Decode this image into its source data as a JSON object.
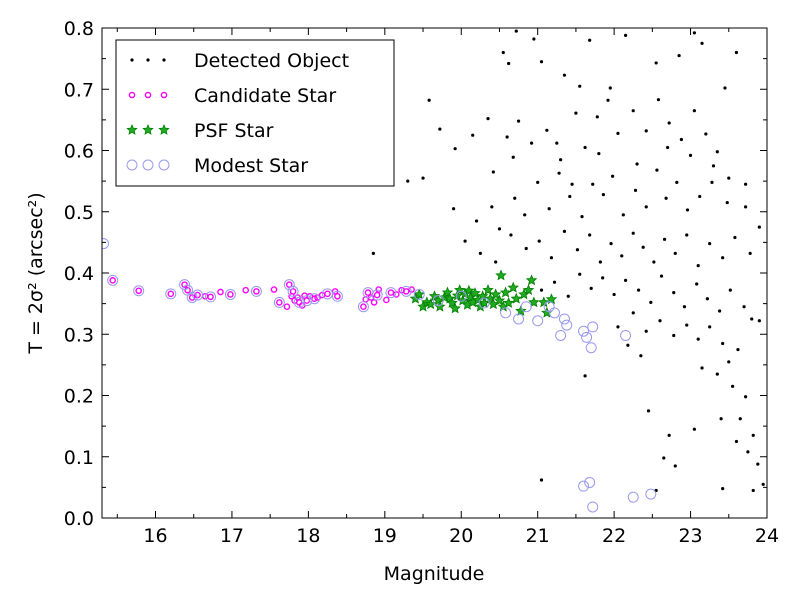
{
  "chart_data": {
    "type": "scatter",
    "xlabel": "Magnitude",
    "ylabel": "T = 2σ² (arcsec²)",
    "xlim": [
      15.3,
      24.0
    ],
    "ylim": [
      0.0,
      0.8
    ],
    "xticks": [
      "16",
      "17",
      "18",
      "19",
      "20",
      "21",
      "22",
      "23",
      "24"
    ],
    "yticks": [
      "0.0",
      "0.1",
      "0.2",
      "0.3",
      "0.4",
      "0.5",
      "0.6",
      "0.7",
      "0.8"
    ],
    "grid": false,
    "legend_position": "top-left",
    "series": [
      {
        "name": "Detected Object",
        "marker": "dot",
        "color": "#000000",
        "points_note": "visible faint dots",
        "points": [
          [
            18.85,
            0.432
          ],
          [
            20.55,
            0.76
          ],
          [
            20.62,
            0.742
          ],
          [
            20.72,
            0.795
          ],
          [
            20.95,
            0.782
          ],
          [
            21.05,
            0.745
          ],
          [
            21.35,
            0.723
          ],
          [
            21.55,
            0.705
          ],
          [
            21.68,
            0.78
          ],
          [
            21.95,
            0.702
          ],
          [
            22.15,
            0.788
          ],
          [
            22.55,
            0.743
          ],
          [
            22.85,
            0.755
          ],
          [
            23.05,
            0.792
          ],
          [
            23.15,
            0.775
          ],
          [
            23.45,
            0.702
          ],
          [
            23.6,
            0.76
          ],
          [
            19.58,
            0.682
          ],
          [
            19.72,
            0.635
          ],
          [
            19.92,
            0.603
          ],
          [
            20.15,
            0.625
          ],
          [
            20.35,
            0.652
          ],
          [
            20.42,
            0.565
          ],
          [
            20.6,
            0.622
          ],
          [
            20.68,
            0.589
          ],
          [
            20.75,
            0.648
          ],
          [
            20.92,
            0.612
          ],
          [
            21.12,
            0.633
          ],
          [
            21.25,
            0.612
          ],
          [
            21.5,
            0.661
          ],
          [
            21.62,
            0.605
          ],
          [
            21.78,
            0.655
          ],
          [
            21.92,
            0.682
          ],
          [
            22.05,
            0.628
          ],
          [
            22.25,
            0.665
          ],
          [
            22.42,
            0.632
          ],
          [
            22.58,
            0.683
          ],
          [
            22.72,
            0.645
          ],
          [
            22.88,
            0.618
          ],
          [
            23.05,
            0.665
          ],
          [
            23.2,
            0.627
          ],
          [
            23.35,
            0.598
          ],
          [
            23.5,
            0.555
          ],
          [
            23.72,
            0.545
          ],
          [
            19.3,
            0.55
          ],
          [
            19.5,
            0.555
          ],
          [
            19.9,
            0.505
          ],
          [
            20.2,
            0.485
          ],
          [
            20.4,
            0.508
          ],
          [
            20.5,
            0.472
          ],
          [
            20.7,
            0.522
          ],
          [
            20.83,
            0.495
          ],
          [
            21.0,
            0.548
          ],
          [
            21.15,
            0.505
          ],
          [
            21.28,
            0.563
          ],
          [
            21.42,
            0.525
          ],
          [
            21.58,
            0.492
          ],
          [
            21.72,
            0.545
          ],
          [
            21.86,
            0.528
          ],
          [
            21.98,
            0.558
          ],
          [
            22.12,
            0.495
          ],
          [
            22.28,
            0.535
          ],
          [
            22.42,
            0.508
          ],
          [
            22.56,
            0.568
          ],
          [
            22.68,
            0.522
          ],
          [
            22.82,
            0.548
          ],
          [
            22.96,
            0.503
          ],
          [
            23.12,
            0.525
          ],
          [
            23.28,
            0.548
          ],
          [
            23.48,
            0.515
          ],
          [
            23.72,
            0.508
          ],
          [
            20.05,
            0.452
          ],
          [
            20.25,
            0.432
          ],
          [
            20.45,
            0.418
          ],
          [
            20.65,
            0.462
          ],
          [
            20.85,
            0.44
          ],
          [
            21.02,
            0.452
          ],
          [
            21.18,
            0.425
          ],
          [
            21.35,
            0.468
          ],
          [
            21.52,
            0.438
          ],
          [
            21.68,
            0.462
          ],
          [
            21.82,
            0.418
          ],
          [
            21.96,
            0.448
          ],
          [
            22.1,
            0.428
          ],
          [
            22.25,
            0.465
          ],
          [
            22.38,
            0.442
          ],
          [
            22.52,
            0.418
          ],
          [
            22.66,
            0.455
          ],
          [
            22.8,
            0.432
          ],
          [
            22.95,
            0.462
          ],
          [
            23.1,
            0.412
          ],
          [
            23.25,
            0.448
          ],
          [
            23.42,
            0.425
          ],
          [
            23.58,
            0.458
          ],
          [
            23.78,
            0.432
          ],
          [
            21.05,
            0.372
          ],
          [
            21.22,
            0.385
          ],
          [
            21.4,
            0.362
          ],
          [
            21.55,
            0.398
          ],
          [
            21.7,
            0.375
          ],
          [
            21.85,
            0.392
          ],
          [
            22.0,
            0.365
          ],
          [
            22.15,
            0.388
          ],
          [
            22.32,
            0.372
          ],
          [
            22.48,
            0.352
          ],
          [
            22.62,
            0.395
          ],
          [
            22.78,
            0.368
          ],
          [
            22.92,
            0.345
          ],
          [
            23.08,
            0.382
          ],
          [
            23.22,
            0.358
          ],
          [
            23.38,
            0.338
          ],
          [
            23.52,
            0.372
          ],
          [
            23.7,
            0.345
          ],
          [
            22.05,
            0.312
          ],
          [
            22.25,
            0.335
          ],
          [
            22.42,
            0.305
          ],
          [
            22.6,
            0.322
          ],
          [
            22.78,
            0.298
          ],
          [
            22.95,
            0.315
          ],
          [
            23.1,
            0.292
          ],
          [
            23.25,
            0.312
          ],
          [
            23.42,
            0.285
          ],
          [
            23.62,
            0.275
          ],
          [
            23.8,
            0.325
          ],
          [
            23.9,
            0.322
          ],
          [
            21.62,
            0.232
          ],
          [
            22.45,
            0.175
          ],
          [
            23.15,
            0.245
          ],
          [
            23.35,
            0.235
          ],
          [
            23.55,
            0.215
          ],
          [
            23.72,
            0.198
          ],
          [
            22.72,
            0.135
          ],
          [
            23.05,
            0.145
          ],
          [
            23.4,
            0.162
          ],
          [
            23.6,
            0.125
          ],
          [
            23.82,
            0.135
          ],
          [
            23.75,
            0.108
          ],
          [
            22.55,
            0.045
          ],
          [
            22.8,
            0.085
          ],
          [
            23.42,
            0.048
          ],
          [
            23.82,
            0.045
          ],
          [
            23.95,
            0.055
          ],
          [
            21.05,
            0.062
          ],
          [
            22.65,
            0.098
          ],
          [
            23.88,
            0.088
          ],
          [
            22.35,
            0.265
          ],
          [
            22.18,
            0.282
          ],
          [
            23.5,
            0.255
          ],
          [
            23.65,
            0.162
          ],
          [
            21.3,
            0.585
          ],
          [
            21.45,
            0.545
          ],
          [
            21.8,
            0.595
          ],
          [
            22.3,
            0.578
          ],
          [
            22.7,
            0.605
          ],
          [
            23.0,
            0.592
          ],
          [
            23.3,
            0.575
          ],
          [
            23.9,
            0.475
          ]
        ]
      },
      {
        "name": "Candidate Star",
        "marker": "circle-small",
        "color": "#ff00ff",
        "points": [
          [
            15.44,
            0.388
          ],
          [
            15.78,
            0.371
          ],
          [
            16.2,
            0.366
          ],
          [
            16.38,
            0.381
          ],
          [
            16.42,
            0.372
          ],
          [
            16.48,
            0.36
          ],
          [
            16.55,
            0.364
          ],
          [
            16.65,
            0.362
          ],
          [
            16.72,
            0.361
          ],
          [
            16.85,
            0.369
          ],
          [
            16.98,
            0.365
          ],
          [
            17.18,
            0.372
          ],
          [
            17.32,
            0.37
          ],
          [
            17.55,
            0.373
          ],
          [
            17.62,
            0.352
          ],
          [
            17.72,
            0.345
          ],
          [
            17.75,
            0.381
          ],
          [
            17.78,
            0.362
          ],
          [
            17.8,
            0.37
          ],
          [
            17.82,
            0.355
          ],
          [
            17.86,
            0.36
          ],
          [
            17.88,
            0.352
          ],
          [
            17.92,
            0.347
          ],
          [
            17.95,
            0.363
          ],
          [
            17.98,
            0.355
          ],
          [
            18.02,
            0.362
          ],
          [
            18.08,
            0.358
          ],
          [
            18.12,
            0.36
          ],
          [
            18.18,
            0.364
          ],
          [
            18.25,
            0.366
          ],
          [
            18.35,
            0.37
          ],
          [
            18.38,
            0.362
          ],
          [
            18.72,
            0.345
          ],
          [
            18.75,
            0.357
          ],
          [
            18.78,
            0.368
          ],
          [
            18.82,
            0.36
          ],
          [
            18.86,
            0.352
          ],
          [
            18.9,
            0.364
          ],
          [
            18.92,
            0.373
          ],
          [
            19.02,
            0.356
          ],
          [
            19.08,
            0.368
          ],
          [
            19.15,
            0.365
          ],
          [
            19.22,
            0.372
          ],
          [
            19.28,
            0.37
          ],
          [
            19.35,
            0.373
          ]
        ]
      },
      {
        "name": "PSF Star",
        "marker": "star",
        "color": "#008000",
        "points": [
          [
            19.4,
            0.358
          ],
          [
            19.45,
            0.365
          ],
          [
            19.5,
            0.345
          ],
          [
            19.55,
            0.352
          ],
          [
            19.6,
            0.349
          ],
          [
            19.65,
            0.362
          ],
          [
            19.7,
            0.355
          ],
          [
            19.72,
            0.345
          ],
          [
            19.78,
            0.36
          ],
          [
            19.82,
            0.368
          ],
          [
            19.85,
            0.358
          ],
          [
            19.88,
            0.351
          ],
          [
            19.92,
            0.342
          ],
          [
            19.95,
            0.363
          ],
          [
            19.98,
            0.372
          ],
          [
            20.02,
            0.355
          ],
          [
            20.05,
            0.366
          ],
          [
            20.08,
            0.348
          ],
          [
            20.1,
            0.371
          ],
          [
            20.12,
            0.36
          ],
          [
            20.15,
            0.352
          ],
          [
            20.18,
            0.367
          ],
          [
            20.22,
            0.356
          ],
          [
            20.25,
            0.345
          ],
          [
            20.28,
            0.362
          ],
          [
            20.3,
            0.351
          ],
          [
            20.35,
            0.372
          ],
          [
            20.38,
            0.358
          ],
          [
            20.42,
            0.349
          ],
          [
            20.45,
            0.365
          ],
          [
            20.5,
            0.355
          ],
          [
            20.52,
            0.396
          ],
          [
            20.55,
            0.345
          ],
          [
            20.58,
            0.368
          ],
          [
            20.62,
            0.351
          ],
          [
            20.68,
            0.376
          ],
          [
            20.72,
            0.358
          ],
          [
            20.78,
            0.338
          ],
          [
            20.82,
            0.365
          ],
          [
            20.88,
            0.372
          ],
          [
            20.92,
            0.388
          ],
          [
            20.95,
            0.352
          ],
          [
            21.08,
            0.352
          ],
          [
            21.12,
            0.335
          ],
          [
            21.18,
            0.357
          ]
        ]
      },
      {
        "name": "Modest Star",
        "marker": "circle-open",
        "color": "#9999ee",
        "points": [
          [
            15.32,
            0.448
          ],
          [
            15.44,
            0.388
          ],
          [
            15.78,
            0.371
          ],
          [
            16.2,
            0.366
          ],
          [
            16.38,
            0.381
          ],
          [
            16.42,
            0.372
          ],
          [
            16.48,
            0.36
          ],
          [
            16.55,
            0.364
          ],
          [
            16.72,
            0.361
          ],
          [
            16.98,
            0.365
          ],
          [
            17.32,
            0.37
          ],
          [
            17.62,
            0.352
          ],
          [
            17.75,
            0.381
          ],
          [
            17.8,
            0.37
          ],
          [
            17.88,
            0.352
          ],
          [
            17.98,
            0.355
          ],
          [
            18.08,
            0.358
          ],
          [
            18.25,
            0.366
          ],
          [
            18.38,
            0.362
          ],
          [
            18.72,
            0.345
          ],
          [
            18.78,
            0.368
          ],
          [
            18.9,
            0.364
          ],
          [
            19.08,
            0.368
          ],
          [
            19.28,
            0.37
          ],
          [
            19.45,
            0.365
          ],
          [
            19.7,
            0.355
          ],
          [
            20.0,
            0.362
          ],
          [
            20.3,
            0.351
          ],
          [
            20.58,
            0.335
          ],
          [
            20.75,
            0.325
          ],
          [
            20.85,
            0.345
          ],
          [
            21.0,
            0.322
          ],
          [
            21.15,
            0.345
          ],
          [
            21.22,
            0.335
          ],
          [
            21.3,
            0.298
          ],
          [
            21.35,
            0.325
          ],
          [
            21.38,
            0.315
          ],
          [
            21.6,
            0.305
          ],
          [
            21.64,
            0.295
          ],
          [
            21.7,
            0.278
          ],
          [
            21.72,
            0.312
          ],
          [
            22.15,
            0.298
          ],
          [
            21.6,
            0.052
          ],
          [
            21.68,
            0.058
          ],
          [
            21.72,
            0.018
          ],
          [
            22.25,
            0.034
          ],
          [
            22.48,
            0.039
          ]
        ]
      }
    ]
  }
}
